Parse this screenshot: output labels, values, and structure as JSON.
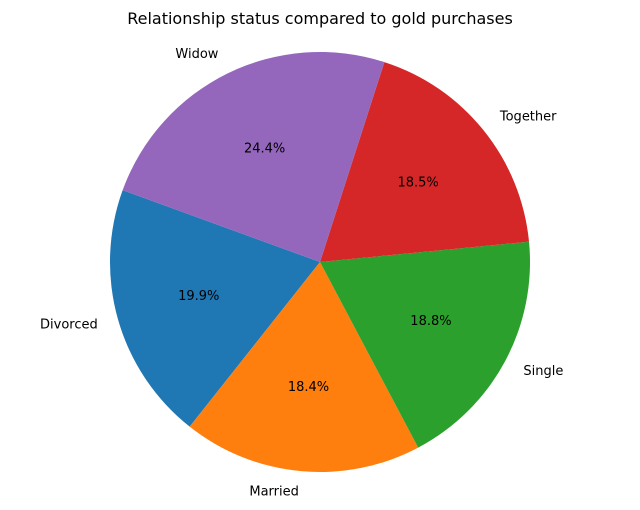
{
  "chart_data": {
    "type": "pie",
    "title": "Relationship status compared to gold purchases",
    "categories": [
      "Divorced",
      "Married",
      "Single",
      "Together",
      "Widow"
    ],
    "values": [
      19.9,
      18.4,
      18.8,
      18.5,
      24.4
    ],
    "value_labels": [
      "19.9%",
      "18.4%",
      "18.8%",
      "18.5%",
      "24.4%"
    ],
    "colors": [
      "#1f77b4",
      "#ff7f0e",
      "#2ca02c",
      "#d62728",
      "#9467bd"
    ],
    "start_angle_deg": 160,
    "direction": "counterclockwise",
    "legend": "none"
  }
}
